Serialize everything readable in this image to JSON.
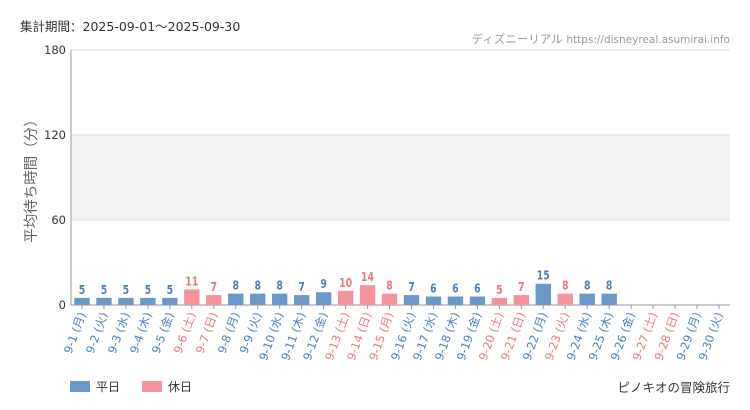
{
  "header": {
    "period": "集計期間：2025-09-01〜2025-09-30",
    "source_name": "ディズニーリアル",
    "source_url": "https://disneyreal.asumirai.info"
  },
  "footer": {
    "attraction": "ピノキオの冒険旅行"
  },
  "colors": {
    "weekday": "#6a98c8",
    "holiday": "#f4939a",
    "weekday_label": "#4f7fb5",
    "holiday_label": "#e8787f",
    "band": "#f2f2f2",
    "grid": "#dddddd"
  },
  "chart_data": {
    "type": "bar",
    "ylabel": "平均待ち時間（分）",
    "ylim": [
      0,
      180
    ],
    "yticks": [
      0,
      60,
      120,
      180
    ],
    "grid": true,
    "legend_position": "bottom-left",
    "categories": [
      "9-1 (月)",
      "9-2 (火)",
      "9-3 (水)",
      "9-4 (木)",
      "9-5 (金)",
      "9-6 (土)",
      "9-7 (日)",
      "9-8 (月)",
      "9-9 (火)",
      "9-10 (水)",
      "9-11 (木)",
      "9-12 (金)",
      "9-13 (土)",
      "9-14 (日)",
      "9-15 (月)",
      "9-16 (火)",
      "9-17 (水)",
      "9-18 (木)",
      "9-19 (金)",
      "9-20 (土)",
      "9-21 (日)",
      "9-22 (月)",
      "9-23 (火)",
      "9-24 (水)",
      "9-25 (木)",
      "9-26 (金)",
      "9-27 (土)",
      "9-28 (日)",
      "9-29 (月)",
      "9-30 (火)"
    ],
    "day_type": [
      "平日",
      "平日",
      "平日",
      "平日",
      "平日",
      "休日",
      "休日",
      "平日",
      "平日",
      "平日",
      "平日",
      "平日",
      "休日",
      "休日",
      "休日",
      "平日",
      "平日",
      "平日",
      "平日",
      "休日",
      "休日",
      "平日",
      "休日",
      "平日",
      "平日",
      "平日",
      "休日",
      "休日",
      "平日",
      "平日"
    ],
    "values": [
      5,
      5,
      5,
      5,
      5,
      11,
      7,
      8,
      8,
      8,
      7,
      9,
      10,
      14,
      8,
      7,
      6,
      6,
      6,
      5,
      7,
      15,
      8,
      8,
      8,
      null,
      null,
      null,
      null,
      null
    ],
    "series": [
      {
        "name": "平日"
      },
      {
        "name": "休日"
      }
    ]
  }
}
